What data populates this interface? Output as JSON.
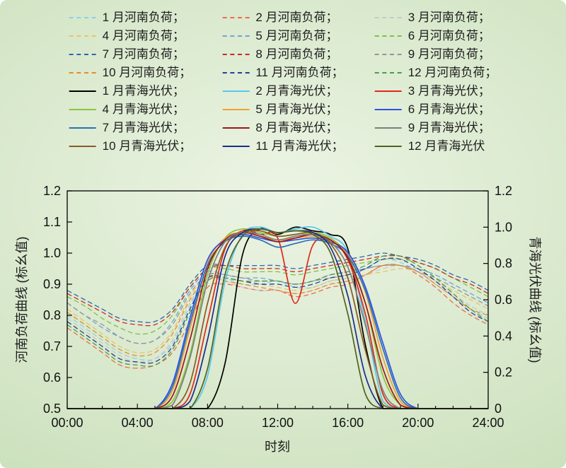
{
  "chart_data": {
    "type": "line",
    "title": "",
    "xlabel": "时刻",
    "x_range": [
      0,
      24
    ],
    "x_tick_hours": [
      0,
      4,
      8,
      12,
      16,
      20,
      24
    ],
    "x_tick_labels": [
      "00:00",
      "04:00",
      "08:00",
      "12:00",
      "16:00",
      "20:00",
      "24:00"
    ],
    "y_left": {
      "label": "河南负荷曲线 (标幺值)",
      "min": 0.5,
      "max": 1.2,
      "ticks": [
        0.5,
        0.6,
        0.7,
        0.8,
        0.9,
        1.0,
        1.1,
        1.2
      ],
      "tick_labels": [
        "0.5",
        "0.6",
        "0.7",
        "0.8",
        "0.9",
        "1.0",
        "1.1",
        "1.2"
      ]
    },
    "y_right": {
      "label": "青海光伏曲线 (标幺值)",
      "min": 0,
      "max": 1.2,
      "ticks": [
        0,
        0.2,
        0.4,
        0.6,
        0.8,
        1.0,
        1.2
      ],
      "tick_labels": [
        "0",
        "0.2",
        "0.4",
        "0.6",
        "0.8",
        "1.0",
        "1.2"
      ]
    },
    "grid": false,
    "legend_position": "top",
    "hours": [
      0,
      1,
      2,
      3,
      4,
      5,
      6,
      7,
      8,
      9,
      10,
      11,
      12,
      13,
      14,
      15,
      16,
      17,
      18,
      19,
      20,
      21,
      22,
      23,
      24
    ],
    "series": [
      {
        "label": "1 月河南负荷；",
        "color": "#8fd0e6",
        "dash": true,
        "axis": "left",
        "values": [
          0.8,
          0.76,
          0.72,
          0.68,
          0.66,
          0.66,
          0.71,
          0.83,
          0.93,
          0.92,
          0.9,
          0.9,
          0.91,
          0.89,
          0.89,
          0.91,
          0.92,
          0.95,
          0.98,
          0.97,
          0.94,
          0.9,
          0.86,
          0.82,
          0.79
        ]
      },
      {
        "label": "2 月河南负荷；",
        "color": "#ee6a4e",
        "dash": true,
        "axis": "left",
        "values": [
          0.76,
          0.72,
          0.68,
          0.64,
          0.63,
          0.64,
          0.68,
          0.78,
          0.89,
          0.9,
          0.89,
          0.88,
          0.88,
          0.86,
          0.87,
          0.89,
          0.9,
          0.93,
          0.96,
          0.96,
          0.93,
          0.89,
          0.84,
          0.8,
          0.77
        ]
      },
      {
        "label": "3 月河南负荷；",
        "color": "#c8c8c8",
        "dash": true,
        "axis": "left",
        "values": [
          0.79,
          0.75,
          0.71,
          0.67,
          0.65,
          0.66,
          0.72,
          0.84,
          0.92,
          0.91,
          0.89,
          0.88,
          0.88,
          0.87,
          0.88,
          0.9,
          0.91,
          0.93,
          0.95,
          0.96,
          0.94,
          0.91,
          0.87,
          0.83,
          0.8
        ]
      },
      {
        "label": "4 月河南负荷；",
        "color": "#e6c56c",
        "dash": true,
        "axis": "left",
        "values": [
          0.82,
          0.78,
          0.74,
          0.7,
          0.68,
          0.69,
          0.75,
          0.86,
          0.93,
          0.92,
          0.91,
          0.9,
          0.89,
          0.88,
          0.89,
          0.91,
          0.92,
          0.93,
          0.94,
          0.95,
          0.94,
          0.91,
          0.88,
          0.85,
          0.82
        ]
      },
      {
        "label": "5 月河南负荷；",
        "color": "#6fa3dc",
        "dash": true,
        "axis": "left",
        "values": [
          0.84,
          0.8,
          0.76,
          0.73,
          0.71,
          0.72,
          0.78,
          0.88,
          0.94,
          0.93,
          0.92,
          0.92,
          0.91,
          0.9,
          0.91,
          0.93,
          0.94,
          0.95,
          0.96,
          0.96,
          0.95,
          0.93,
          0.9,
          0.87,
          0.84
        ]
      },
      {
        "label": "6 月河南负荷；",
        "color": "#79c14b",
        "dash": true,
        "axis": "left",
        "values": [
          0.86,
          0.83,
          0.79,
          0.76,
          0.74,
          0.75,
          0.8,
          0.89,
          0.95,
          0.95,
          0.94,
          0.94,
          0.94,
          0.93,
          0.94,
          0.95,
          0.96,
          0.97,
          0.98,
          0.98,
          0.97,
          0.95,
          0.92,
          0.89,
          0.86
        ]
      },
      {
        "label": "7 月河南负荷；",
        "color": "#2f63b4",
        "dash": true,
        "axis": "left",
        "values": [
          0.88,
          0.85,
          0.82,
          0.79,
          0.78,
          0.78,
          0.82,
          0.9,
          0.96,
          0.96,
          0.96,
          0.96,
          0.96,
          0.95,
          0.96,
          0.97,
          0.98,
          0.99,
          1.0,
          0.99,
          0.98,
          0.96,
          0.93,
          0.91,
          0.88
        ]
      },
      {
        "label": "8 月河南负荷；",
        "color": "#cc2a20",
        "dash": true,
        "axis": "left",
        "values": [
          0.87,
          0.84,
          0.81,
          0.78,
          0.77,
          0.77,
          0.81,
          0.89,
          0.95,
          0.96,
          0.95,
          0.95,
          0.95,
          0.94,
          0.95,
          0.96,
          0.97,
          0.98,
          0.99,
          0.99,
          0.97,
          0.95,
          0.92,
          0.9,
          0.87
        ]
      },
      {
        "label": "9 月河南负荷；",
        "color": "#969696",
        "dash": true,
        "axis": "left",
        "values": [
          0.84,
          0.8,
          0.77,
          0.73,
          0.71,
          0.72,
          0.77,
          0.87,
          0.93,
          0.93,
          0.92,
          0.91,
          0.91,
          0.9,
          0.91,
          0.92,
          0.93,
          0.95,
          0.96,
          0.96,
          0.94,
          0.92,
          0.89,
          0.86,
          0.83
        ]
      },
      {
        "label": "10 月河南负荷；",
        "color": "#e98a2d",
        "dash": true,
        "axis": "left",
        "values": [
          0.81,
          0.77,
          0.73,
          0.69,
          0.67,
          0.68,
          0.74,
          0.85,
          0.92,
          0.91,
          0.9,
          0.89,
          0.88,
          0.87,
          0.88,
          0.9,
          0.91,
          0.93,
          0.96,
          0.96,
          0.94,
          0.9,
          0.86,
          0.82,
          0.8
        ]
      },
      {
        "label": "11 月河南负荷；",
        "color": "#2b3a96",
        "dash": true,
        "axis": "left",
        "values": [
          0.78,
          0.74,
          0.7,
          0.66,
          0.65,
          0.65,
          0.7,
          0.82,
          0.92,
          0.92,
          0.91,
          0.9,
          0.9,
          0.89,
          0.9,
          0.92,
          0.93,
          0.95,
          0.98,
          0.98,
          0.95,
          0.91,
          0.86,
          0.81,
          0.78
        ]
      },
      {
        "label": "12 月河南负荷；",
        "color": "#4d9a4b",
        "dash": true,
        "axis": "left",
        "values": [
          0.77,
          0.73,
          0.69,
          0.65,
          0.64,
          0.64,
          0.69,
          0.81,
          0.91,
          0.92,
          0.91,
          0.91,
          0.91,
          0.9,
          0.91,
          0.93,
          0.94,
          0.96,
          0.99,
          0.99,
          0.96,
          0.92,
          0.87,
          0.82,
          0.78
        ]
      },
      {
        "label": "1 月青海光伏；",
        "color": "#000000",
        "dash": false,
        "axis": "right",
        "values": [
          0,
          0,
          0,
          0,
          0,
          0,
          0,
          0,
          0,
          0.25,
          0.85,
          0.99,
          0.96,
          1.0,
          0.98,
          0.96,
          0.88,
          0.35,
          0,
          0,
          0,
          0,
          0,
          0,
          0
        ]
      },
      {
        "label": "2 月青海光伏；",
        "color": "#57c7e8",
        "dash": false,
        "axis": "right",
        "values": [
          0,
          0,
          0,
          0,
          0,
          0,
          0,
          0,
          0.18,
          0.7,
          0.96,
          1.0,
          0.97,
          0.99,
          1.0,
          0.95,
          0.86,
          0.48,
          0.04,
          0,
          0,
          0,
          0,
          0,
          0
        ]
      },
      {
        "label": "3 月青海光伏；",
        "color": "#e3271d",
        "dash": false,
        "axis": "right",
        "values": [
          0,
          0,
          0,
          0,
          0,
          0,
          0,
          0.08,
          0.48,
          0.88,
          0.98,
          0.96,
          0.94,
          0.58,
          0.9,
          0.93,
          0.82,
          0.52,
          0.08,
          0,
          0,
          0,
          0,
          0,
          0
        ]
      },
      {
        "label": "4 月青海光伏；",
        "color": "#8cc63e",
        "dash": false,
        "axis": "right",
        "values": [
          0,
          0,
          0,
          0,
          0,
          0,
          0.04,
          0.3,
          0.74,
          0.94,
          0.99,
          0.97,
          0.95,
          0.96,
          0.97,
          0.94,
          0.84,
          0.58,
          0.18,
          0.02,
          0,
          0,
          0,
          0,
          0
        ]
      },
      {
        "label": "5 月青海光伏；",
        "color": "#f0a231",
        "dash": false,
        "axis": "right",
        "values": [
          0,
          0,
          0,
          0,
          0,
          0,
          0.1,
          0.44,
          0.8,
          0.94,
          0.97,
          0.95,
          0.93,
          0.94,
          0.95,
          0.93,
          0.85,
          0.64,
          0.28,
          0.04,
          0,
          0,
          0,
          0,
          0
        ]
      },
      {
        "label": "6 月青海光伏；",
        "color": "#2d52e2",
        "dash": false,
        "axis": "right",
        "values": [
          0,
          0,
          0,
          0,
          0,
          0,
          0.14,
          0.5,
          0.82,
          0.93,
          0.96,
          0.94,
          0.92,
          0.93,
          0.94,
          0.92,
          0.86,
          0.67,
          0.36,
          0.08,
          0,
          0,
          0,
          0,
          0
        ]
      },
      {
        "label": "7 月青海光伏；",
        "color": "#2e6eb6",
        "dash": false,
        "axis": "right",
        "values": [
          0,
          0,
          0,
          0,
          0,
          0,
          0.12,
          0.47,
          0.79,
          0.92,
          0.95,
          0.93,
          0.89,
          0.91,
          0.93,
          0.91,
          0.84,
          0.65,
          0.33,
          0.06,
          0,
          0,
          0,
          0,
          0
        ]
      },
      {
        "label": "8 月青海光伏；",
        "color": "#a01616",
        "dash": false,
        "axis": "right",
        "values": [
          0,
          0,
          0,
          0,
          0,
          0,
          0.07,
          0.38,
          0.77,
          0.93,
          0.97,
          0.95,
          0.92,
          0.94,
          0.96,
          0.93,
          0.83,
          0.58,
          0.22,
          0.02,
          0,
          0,
          0,
          0,
          0
        ]
      },
      {
        "label": "9 月青海光伏；",
        "color": "#7f7f7f",
        "dash": false,
        "axis": "right",
        "values": [
          0,
          0,
          0,
          0,
          0,
          0,
          0.02,
          0.28,
          0.7,
          0.92,
          0.97,
          0.96,
          0.93,
          0.95,
          0.96,
          0.92,
          0.78,
          0.46,
          0.1,
          0,
          0,
          0,
          0,
          0,
          0
        ]
      },
      {
        "label": "10 月青海光伏；",
        "color": "#8a5a26",
        "dash": false,
        "axis": "right",
        "values": [
          0,
          0,
          0,
          0,
          0,
          0,
          0,
          0.14,
          0.58,
          0.89,
          0.97,
          0.98,
          0.95,
          0.96,
          0.97,
          0.91,
          0.72,
          0.32,
          0.02,
          0,
          0,
          0,
          0,
          0,
          0
        ]
      },
      {
        "label": "11 月青海光伏；",
        "color": "#1e2c8c",
        "dash": false,
        "axis": "right",
        "values": [
          0,
          0,
          0,
          0,
          0,
          0,
          0,
          0.04,
          0.38,
          0.84,
          0.97,
          0.99,
          0.97,
          0.98,
          0.97,
          0.89,
          0.62,
          0.18,
          0,
          0,
          0,
          0,
          0,
          0,
          0
        ]
      },
      {
        "label": "12 月青海光伏",
        "color": "#53621e",
        "dash": false,
        "axis": "right",
        "values": [
          0,
          0,
          0,
          0,
          0,
          0,
          0,
          0,
          0.22,
          0.74,
          0.95,
          0.99,
          0.97,
          0.98,
          0.96,
          0.86,
          0.52,
          0.08,
          0,
          0,
          0,
          0,
          0,
          0,
          0
        ]
      }
    ]
  }
}
